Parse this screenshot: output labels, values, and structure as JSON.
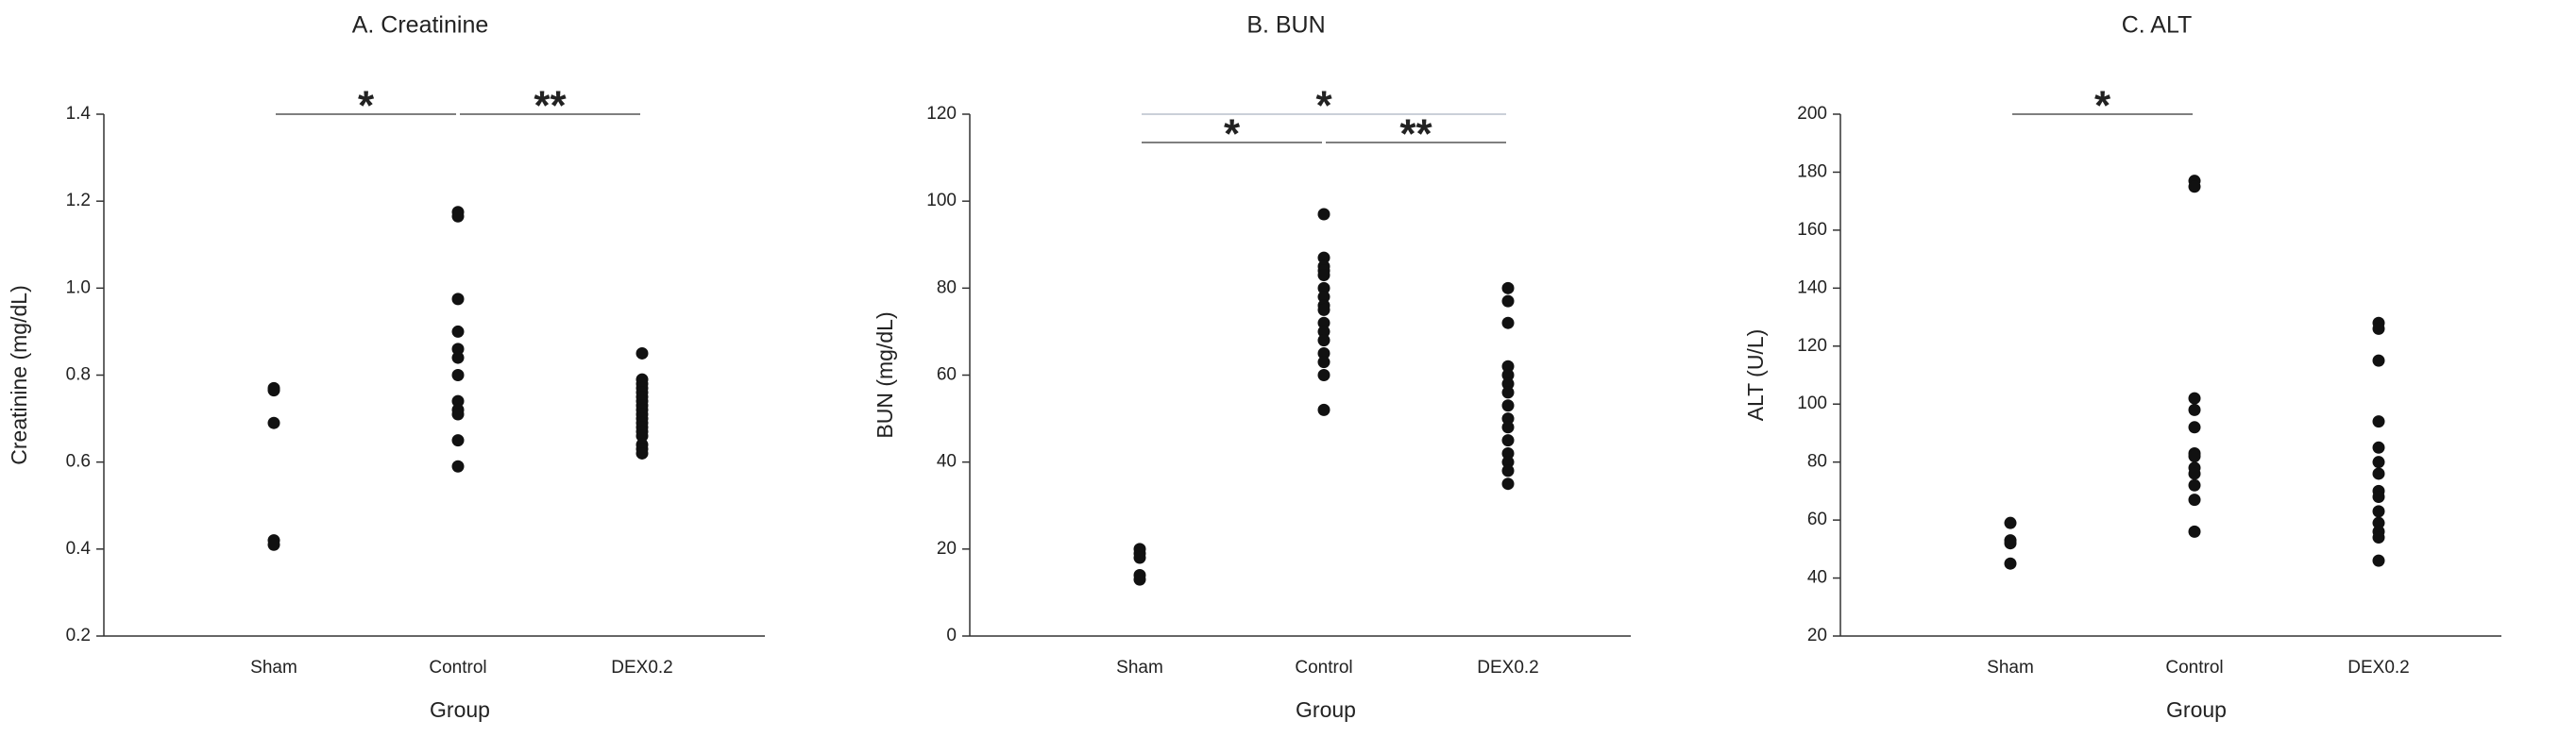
{
  "chart_data": [
    {
      "type": "strip",
      "title": "A. Creatinine",
      "x_label": "Group",
      "y_label": "Creatinine (mg/dL)",
      "categories": [
        "Sham",
        "Control",
        "DEX0.2"
      ],
      "values": [
        [
          0.77,
          0.765,
          0.69,
          0.42,
          0.41
        ],
        [
          1.175,
          1.165,
          0.975,
          0.9,
          0.86,
          0.84,
          0.8,
          0.74,
          0.72,
          0.71,
          0.65,
          0.59
        ],
        [
          0.85,
          0.79,
          0.78,
          0.77,
          0.76,
          0.75,
          0.74,
          0.73,
          0.72,
          0.71,
          0.7,
          0.69,
          0.68,
          0.67,
          0.66,
          0.64,
          0.63,
          0.62
        ]
      ],
      "color": "#111111",
      "ylim": [
        0.2,
        1.4
      ],
      "yticks": [
        0.2,
        0.4,
        0.6,
        0.8,
        {
          "value": 1,
          "label": "1.0"
        },
        1.2,
        1.4
      ],
      "annotations": [
        {
          "label": "*",
          "span": [
            0,
            1
          ]
        },
        {
          "label": "**",
          "span": [
            1,
            2
          ]
        }
      ]
    },
    {
      "type": "strip",
      "title": "B. BUN",
      "x_label": "Group",
      "y_label": "BUN (mg/dL)",
      "categories": [
        "Sham",
        "Control",
        "DEX0.2"
      ],
      "values": [
        [
          20,
          19,
          18,
          14,
          13
        ],
        [
          97,
          87,
          85,
          84,
          83,
          80,
          78,
          76,
          75,
          72,
          70,
          68,
          65,
          63,
          60,
          52
        ],
        [
          80,
          77,
          72,
          62,
          60,
          58,
          56,
          53,
          50,
          48,
          45,
          42,
          40,
          38,
          35
        ]
      ],
      "color": "#111111",
      "ylim": [
        0,
        120
      ],
      "yticks": [
        0,
        20,
        40,
        60,
        80,
        100,
        120
      ],
      "annotations": [
        {
          "label": "*",
          "span": [
            0,
            2
          ]
        },
        {
          "label": "*",
          "span": [
            0,
            1
          ]
        },
        {
          "label": "**",
          "span": [
            1,
            2
          ]
        }
      ]
    },
    {
      "type": "strip",
      "title": "C. ALT",
      "x_label": "Group",
      "y_label": "ALT (U/L)",
      "categories": [
        "Sham",
        "Control",
        "DEX0.2"
      ],
      "values": [
        [
          59,
          53,
          52,
          45
        ],
        [
          177,
          175,
          102,
          98,
          92,
          83,
          82,
          78,
          76,
          72,
          67,
          56
        ],
        [
          128,
          126,
          115,
          94,
          85,
          80,
          76,
          70,
          68,
          63,
          59,
          56,
          54,
          46
        ]
      ],
      "color": "#111111",
      "ylim": [
        20,
        200
      ],
      "yticks": [
        20,
        40,
        60,
        80,
        100,
        120,
        140,
        160,
        180,
        200
      ],
      "annotations": [
        {
          "label": "*",
          "span": [
            0,
            1
          ]
        }
      ]
    }
  ]
}
